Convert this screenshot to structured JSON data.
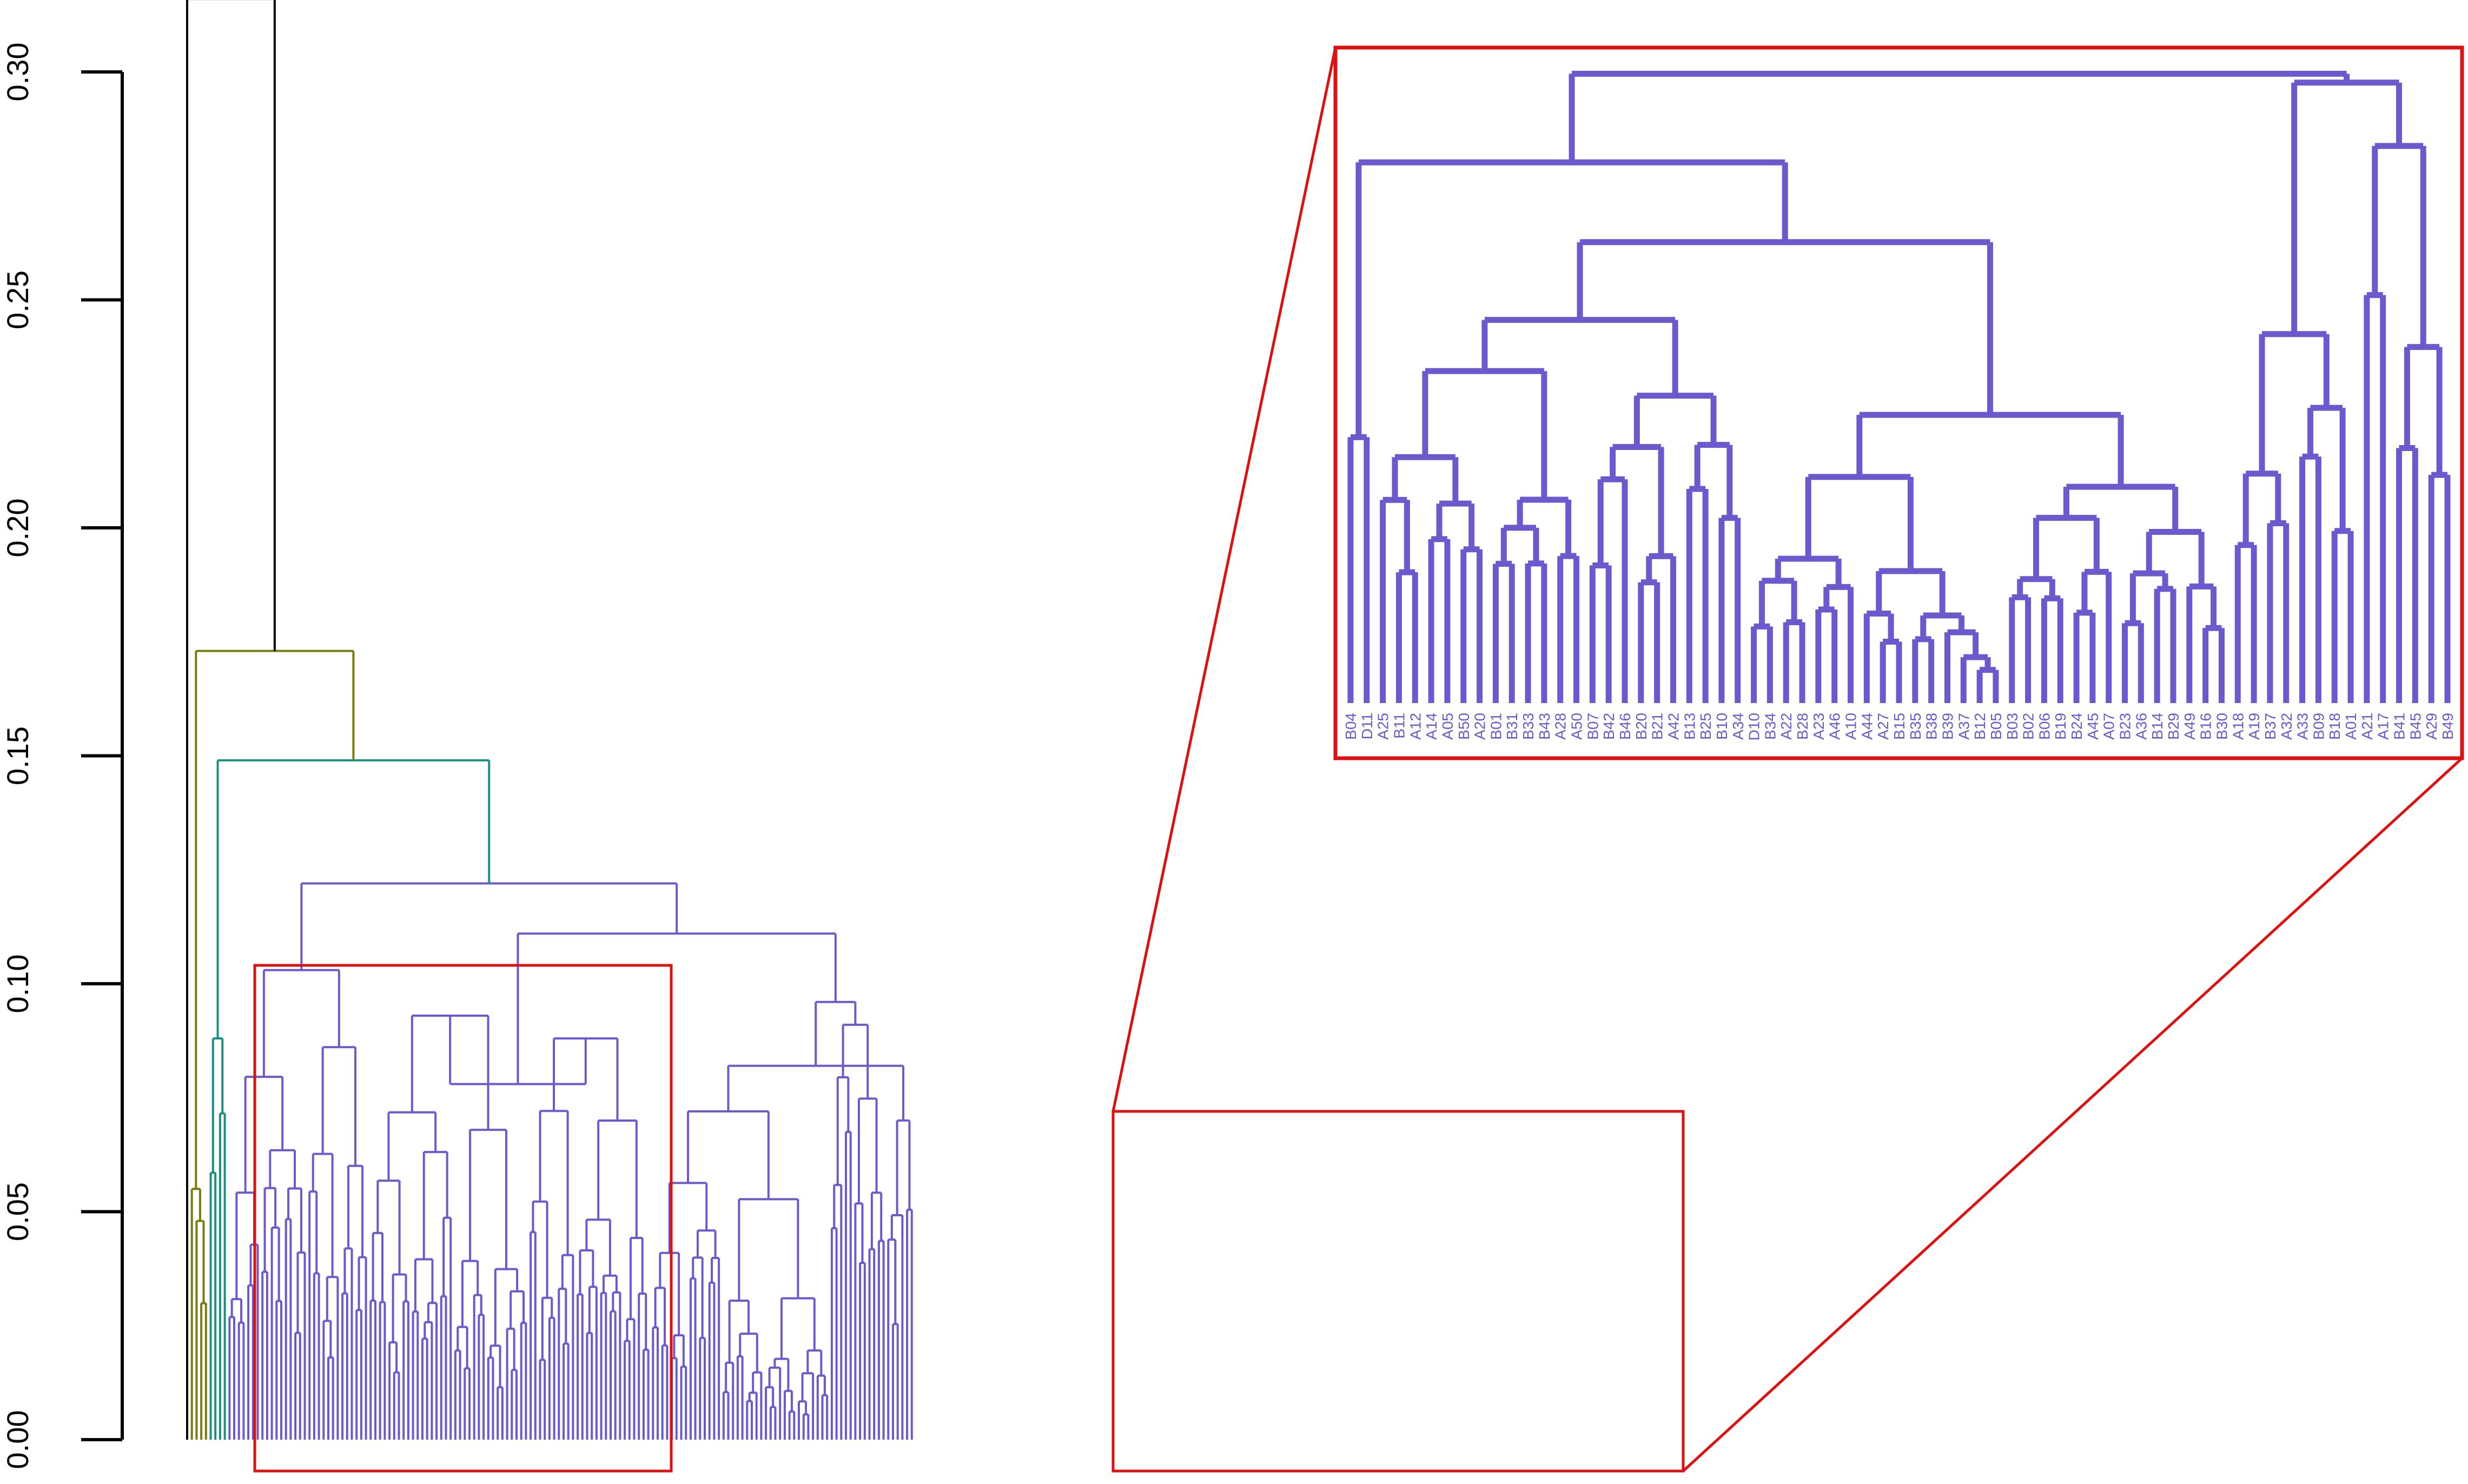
{
  "chart_data": {
    "type": "dendrogram",
    "ylim": [
      0,
      0.3
    ],
    "yticks": [
      "0.00",
      "0.05",
      "0.10",
      "0.15",
      "0.20",
      "0.25",
      "0.30"
    ],
    "grid": false,
    "colors": {
      "root": "#000000",
      "pink": "#cc4477",
      "olive": "#7a7a10",
      "teal": "#1a8f80",
      "main": "#6a5acd",
      "highlight": "#dd1111"
    },
    "cluster_merge_heights": {
      "root": 0.316,
      "pink_vs_rest": 0.316,
      "olive_vs_rest": 0.173,
      "teal_vs_rest": 0.149,
      "main_split": 0.122,
      "left_block": 0.103,
      "right_block": 0.111
    },
    "highlighted_regions": 2,
    "inset": {
      "source": "second highlighted region",
      "leaves": [
        "B04",
        "D11",
        "A25",
        "B11",
        "A12",
        "A14",
        "A05",
        "B50",
        "A20",
        "B01",
        "B31",
        "B33",
        "B43",
        "A28",
        "A50",
        "B07",
        "B42",
        "B46",
        "B20",
        "B21",
        "A42",
        "B13",
        "B25",
        "B10",
        "A34",
        "D10",
        "B34",
        "A22",
        "B28",
        "A23",
        "A46",
        "A10",
        "A44",
        "A27",
        "B15",
        "B35",
        "B38",
        "B39",
        "A37",
        "B12",
        "B05",
        "B03",
        "B02",
        "B06",
        "B19",
        "B24",
        "A45",
        "A07",
        "B23",
        "A36",
        "B14",
        "B29",
        "A49",
        "B16",
        "B30",
        "A18",
        "A19",
        "B37",
        "A32",
        "A33",
        "B09",
        "B18",
        "A01",
        "A21",
        "A17",
        "B41",
        "B45",
        "A29",
        "B49"
      ]
    }
  }
}
